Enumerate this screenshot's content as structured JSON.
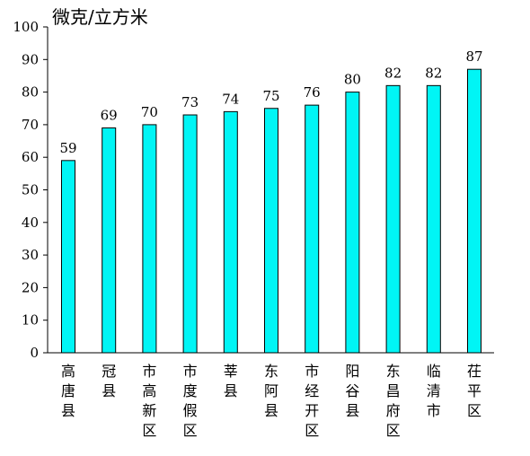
{
  "chart_data": {
    "type": "bar",
    "title": "",
    "ylabel": "微克/立方米",
    "xlabel": "",
    "ylim": [
      0,
      100
    ],
    "yticks": [
      0,
      10,
      20,
      30,
      40,
      50,
      60,
      70,
      80,
      90,
      100
    ],
    "categories": [
      "高唐县",
      "冠县",
      "市高新区",
      "市度假区",
      "莘县",
      "东阿县",
      "市经开区",
      "阳谷县",
      "东昌府区",
      "临清市",
      "茌平区"
    ],
    "values": [
      59,
      69,
      70,
      73,
      74,
      75,
      76,
      80,
      82,
      82,
      87
    ],
    "bar_color": "#00F5F5",
    "bar_edge_color": "#000000",
    "grid": false,
    "legend": "none"
  }
}
